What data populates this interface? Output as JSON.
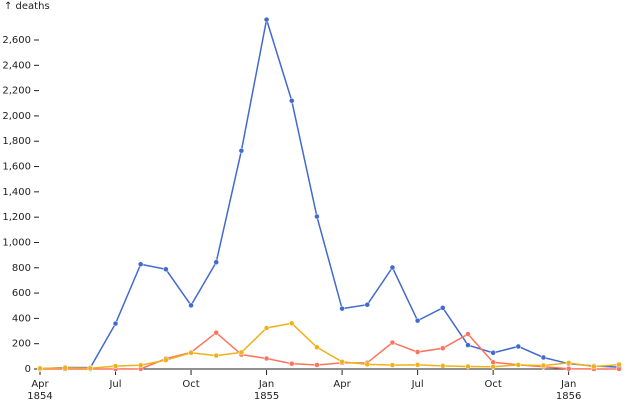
{
  "chart_data": {
    "type": "line",
    "y_label": "↑ deaths",
    "x": [
      "1854-04",
      "1854-05",
      "1854-06",
      "1854-07",
      "1854-08",
      "1854-09",
      "1854-10",
      "1854-11",
      "1854-12",
      "1855-01",
      "1855-02",
      "1855-03",
      "1855-04",
      "1855-05",
      "1855-06",
      "1855-07",
      "1855-08",
      "1855-09",
      "1855-10",
      "1855-11",
      "1855-12",
      "1856-01",
      "1856-02",
      "1856-03"
    ],
    "series": [
      {
        "color": "#4269d0",
        "values": [
          1,
          12,
          11,
          359,
          828,
          788,
          503,
          844,
          1725,
          2761,
          2120,
          1205,
          477,
          508,
          802,
          382,
          483,
          189,
          128,
          178,
          91,
          42,
          24,
          15
        ]
      },
      {
        "color": "#ff725c",
        "values": [
          0,
          0,
          0,
          0,
          1,
          81,
          132,
          287,
          114,
          83,
          42,
          32,
          48,
          49,
          209,
          134,
          164,
          276,
          53,
          33,
          18,
          2,
          0,
          0
        ]
      },
      {
        "color": "#efb118",
        "values": [
          5,
          9,
          6,
          23,
          30,
          70,
          128,
          106,
          131,
          324,
          361,
          172,
          57,
          37,
          31,
          33,
          25,
          20,
          18,
          32,
          28,
          48,
          19,
          35
        ]
      }
    ],
    "xlim": [
      "1854-04",
      "1856-03"
    ],
    "xticks": [
      {
        "value": "1854-04",
        "label": [
          "Apr",
          "1854"
        ]
      },
      {
        "value": "1854-07",
        "label": [
          "Jul"
        ]
      },
      {
        "value": "1854-10",
        "label": [
          "Oct"
        ]
      },
      {
        "value": "1855-01",
        "label": [
          "Jan",
          "1855"
        ]
      },
      {
        "value": "1855-04",
        "label": [
          "Apr"
        ]
      },
      {
        "value": "1855-07",
        "label": [
          "Jul"
        ]
      },
      {
        "value": "1855-10",
        "label": [
          "Oct"
        ]
      },
      {
        "value": "1856-01",
        "label": [
          "Jan",
          "1856"
        ]
      }
    ],
    "ylim": [
      0,
      2600
    ],
    "yticks": [
      0,
      200,
      400,
      600,
      800,
      {
        "value": 1000,
        "label": "1,000"
      },
      {
        "value": 1200,
        "label": "1,200"
      },
      {
        "value": 1400,
        "label": "1,400"
      },
      {
        "value": 1600,
        "label": "1,600"
      },
      {
        "value": 1800,
        "label": "1,800"
      },
      {
        "value": 2000,
        "label": "2,000"
      },
      {
        "value": 2200,
        "label": "2,200"
      },
      {
        "value": 2400,
        "label": "2,400"
      },
      {
        "value": 2600,
        "label": "2,600"
      }
    ]
  }
}
